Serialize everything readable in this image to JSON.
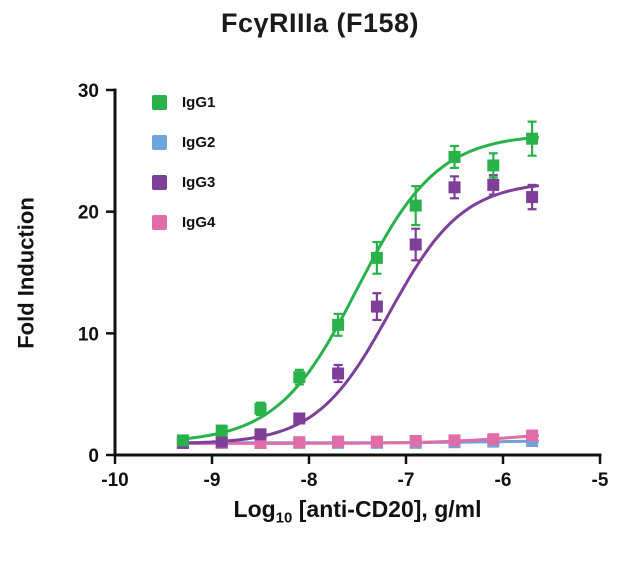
{
  "chart_data": {
    "type": "scatter",
    "subtype": "dose-response-curves",
    "title": "FcγRIIIa (F158)",
    "ylabel": "Fold Induction",
    "xlabel_parts": [
      "Log",
      "10",
      " [anti-CD20], g/ml"
    ],
    "xlabel_full": "Log10 [anti-CD20], g/ml",
    "xlim": [
      -10,
      -5
    ],
    "ylim": [
      0,
      30
    ],
    "x_ticks": [
      -10,
      -9,
      -8,
      -7,
      -6,
      -5
    ],
    "y_ticks": [
      0,
      10,
      20,
      30
    ],
    "grid": false,
    "legend_position": "top-left-inside",
    "marker": "square",
    "axis_color": "#111111",
    "x": [
      -9.3,
      -8.9,
      -8.5,
      -8.1,
      -7.7,
      -7.3,
      -6.9,
      -6.5,
      -6.1,
      -5.7
    ],
    "series": [
      {
        "name": "IgG1",
        "color": "#29B24A",
        "values": [
          1.2,
          2.0,
          3.8,
          6.4,
          10.7,
          16.2,
          20.5,
          24.5,
          23.8,
          26.0
        ],
        "errors": [
          0.3,
          0.4,
          0.5,
          0.6,
          0.9,
          1.3,
          1.6,
          0.9,
          1.0,
          1.4
        ],
        "fit": {
          "bottom": 1.0,
          "top": 26.4,
          "logEC50": -7.5,
          "hill": 1.05
        }
      },
      {
        "name": "IgG2",
        "color": "#6FA3DB",
        "values": [
          1.0,
          1.0,
          1.0,
          1.0,
          1.0,
          1.0,
          1.0,
          1.05,
          1.1,
          1.15
        ],
        "errors": [
          0.15,
          0.1,
          0.1,
          0.1,
          0.1,
          0.15,
          0.1,
          0.15,
          0.15,
          0.2
        ],
        "fit": {
          "bottom": 1.0,
          "top": 1.2,
          "logEC50": -6.0,
          "hill": 1.0
        }
      },
      {
        "name": "IgG3",
        "color": "#7D3F98",
        "values": [
          1.0,
          1.1,
          1.7,
          3.0,
          6.7,
          12.2,
          17.3,
          22.0,
          22.2,
          21.2
        ],
        "errors": [
          0.2,
          0.2,
          0.3,
          0.4,
          0.7,
          1.1,
          1.3,
          0.9,
          0.8,
          1.0
        ],
        "fit": {
          "bottom": 0.9,
          "top": 22.5,
          "logEC50": -7.17,
          "hill": 1.15
        }
      },
      {
        "name": "IgG4",
        "color": "#E06CA8",
        "values": [
          1.0,
          1.0,
          1.0,
          1.05,
          1.1,
          1.1,
          1.15,
          1.2,
          1.3,
          1.6
        ],
        "errors": [
          0.15,
          0.1,
          0.1,
          0.1,
          0.1,
          0.1,
          0.15,
          0.2,
          0.2,
          0.3
        ],
        "fit": {
          "bottom": 0.95,
          "top": 2.0,
          "logEC50": -5.85,
          "hill": 1.0
        }
      }
    ]
  }
}
